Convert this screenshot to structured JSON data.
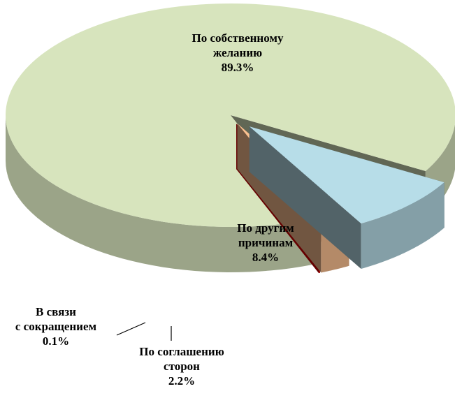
{
  "chart_data": {
    "type": "pie3d",
    "categories": [
      "По собственному\nжеланию",
      "По другим\nпричинам",
      "По соглашению\nсторон",
      "В связи\nс сокращением"
    ],
    "values": [
      89.3,
      8.4,
      2.2,
      0.1
    ],
    "value_labels": [
      "89.3%",
      "8.4%",
      "2.2%",
      "0.1%"
    ],
    "colors": [
      "#d7e4bd",
      "#b7dde8",
      "#fac090",
      "#e00000"
    ]
  }
}
